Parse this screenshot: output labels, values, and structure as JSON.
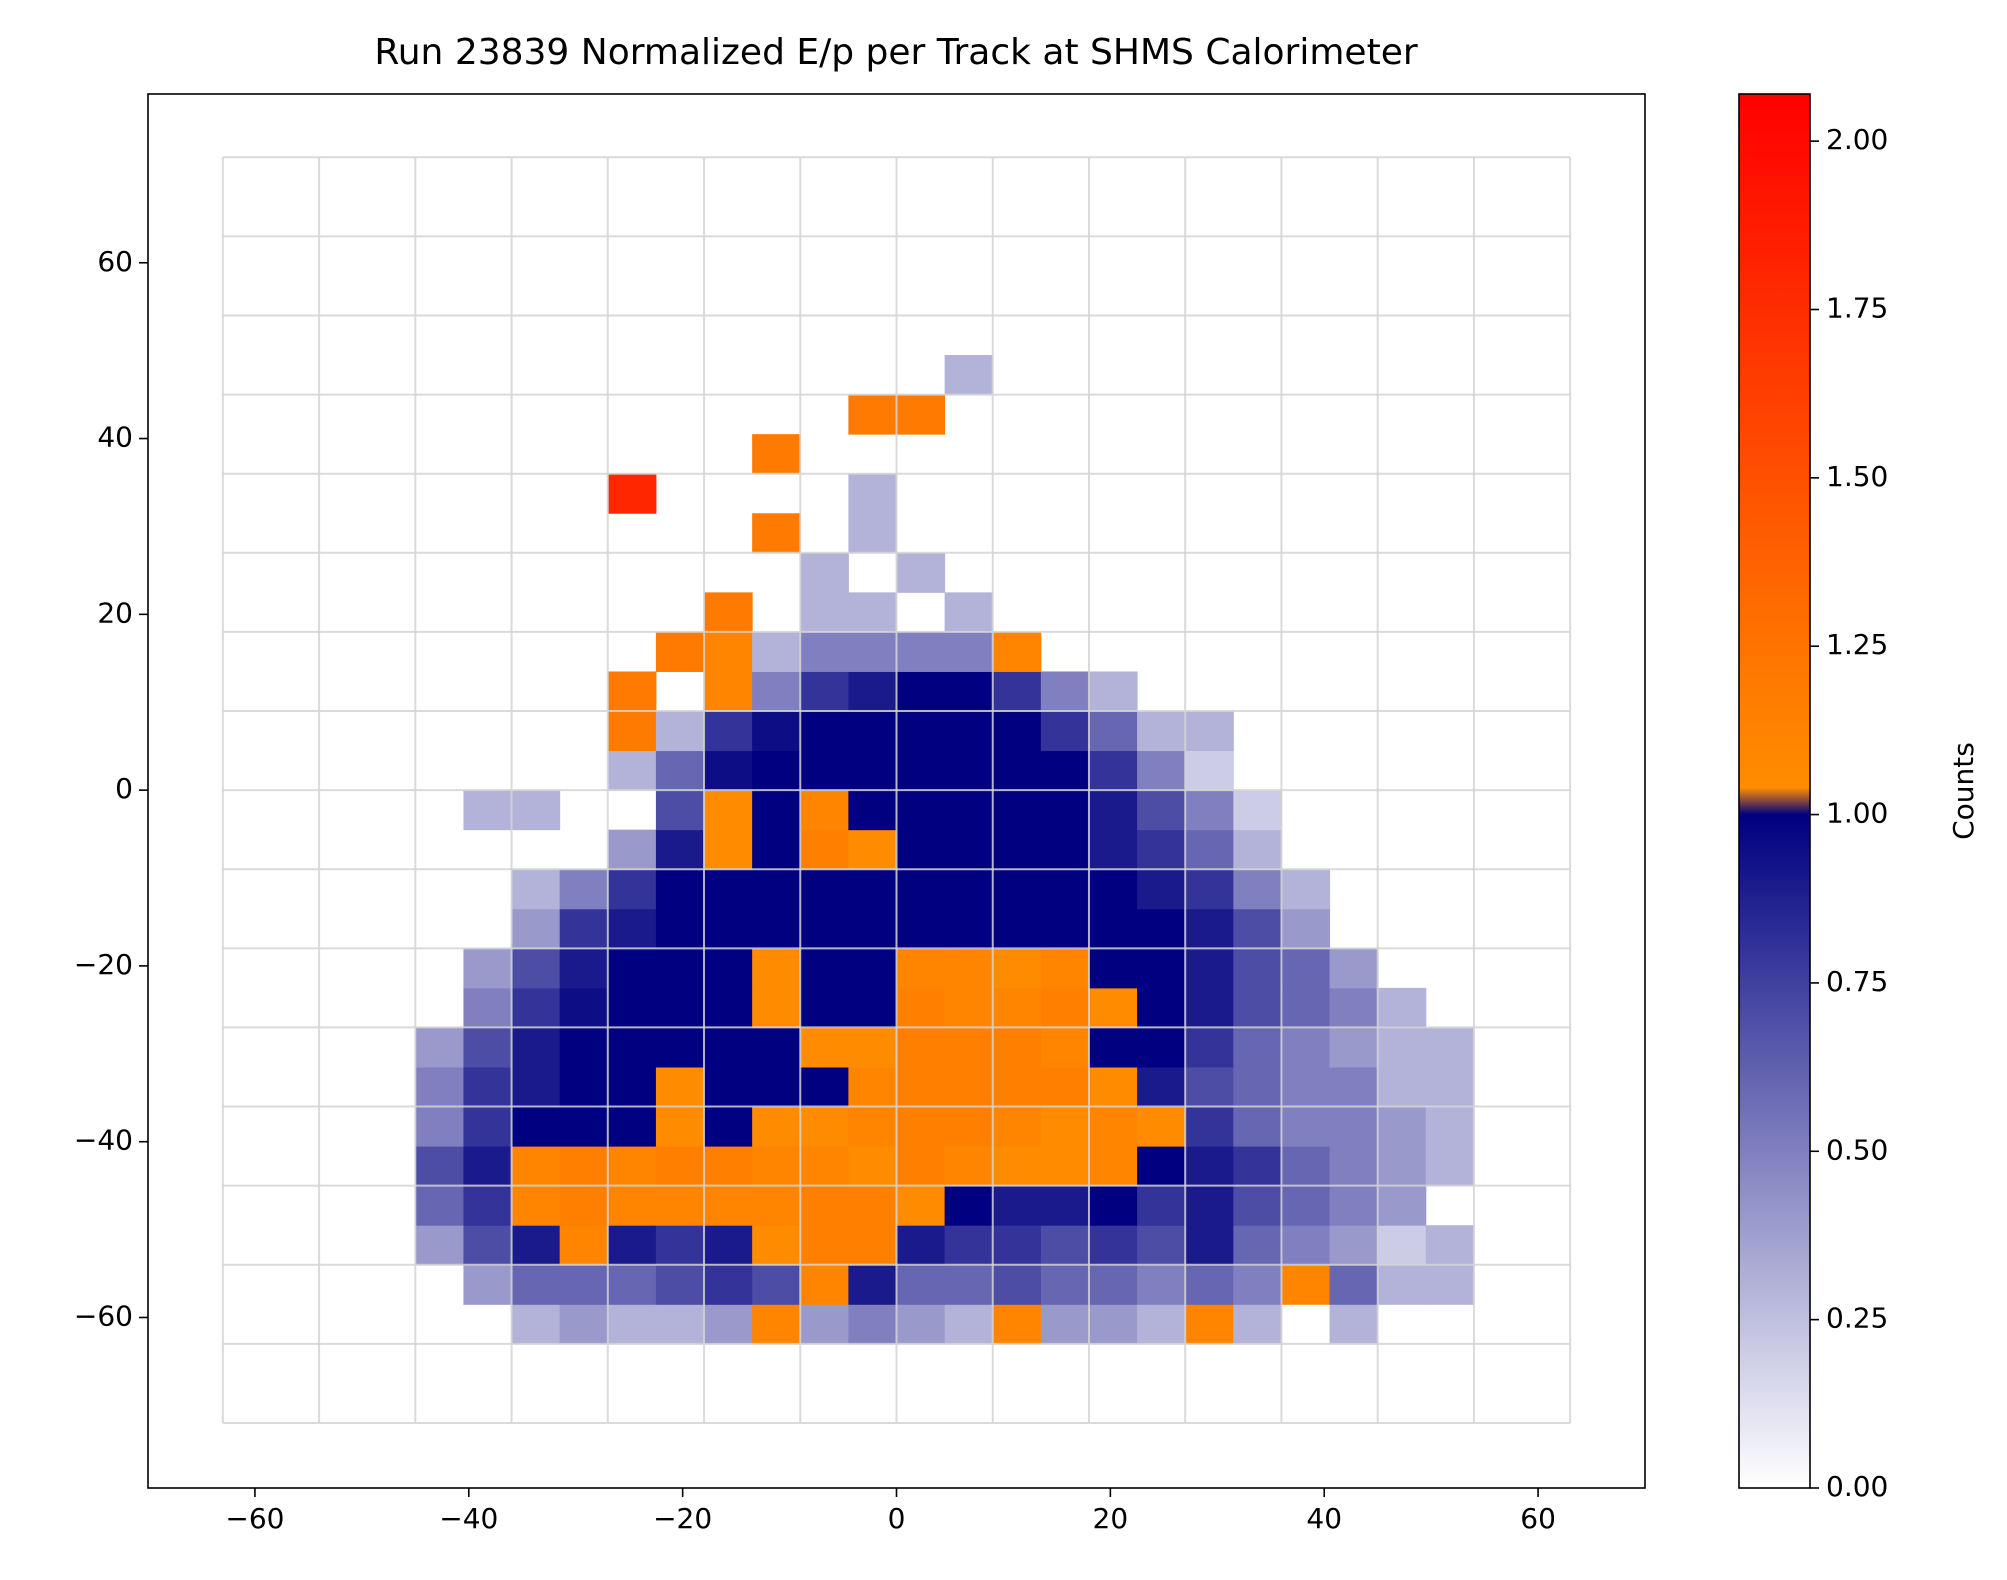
{
  "chart_data": {
    "type": "heatmap",
    "title": "Run 23839 Normalized E/p per Track at SHMS Calorimeter",
    "colorbar_label": "Counts",
    "xlim": [
      -70,
      70
    ],
    "ylim": [
      -79.4,
      79.2
    ],
    "xticks": [
      {
        "value": -60,
        "label": "−60"
      },
      {
        "value": -40,
        "label": "−40"
      },
      {
        "value": -20,
        "label": "−20"
      },
      0,
      20,
      40,
      60
    ],
    "yticks": [
      {
        "value": -60,
        "label": "−60"
      },
      {
        "value": -40,
        "label": "−40"
      },
      {
        "value": -20,
        "label": "−20"
      },
      0,
      20,
      40,
      60
    ],
    "grid_x": [
      -63,
      -54,
      -45,
      -36,
      -27,
      -18,
      -9,
      0,
      9,
      18,
      27,
      36,
      45,
      54,
      63
    ],
    "grid_y": [
      -72,
      -63,
      -54,
      -45,
      -36,
      -27,
      -18,
      -9,
      0,
      9,
      18,
      27,
      36,
      45,
      54,
      63,
      72
    ],
    "grid_color": "#d3d3d3",
    "x_edges": [
      -45,
      -40.5,
      -36,
      -31.5,
      -27,
      -22.5,
      -18,
      -13.5,
      -9,
      -4.5,
      0,
      4.5,
      9,
      13.5,
      18,
      22.5,
      27,
      31.5,
      36,
      40.5,
      45,
      49.5,
      54
    ],
    "y_edges": [
      -63,
      -58.5,
      -54,
      -49.5,
      -45,
      -40.5,
      -36,
      -31.5,
      -27,
      -22.5,
      -18,
      -13.5,
      -9,
      -4.5,
      0,
      4.5,
      9,
      13.5,
      18,
      22.5,
      27,
      31.5,
      36,
      40.5,
      45,
      49.5
    ],
    "z": [
      [
        null,
        null,
        0.3,
        0.4,
        0.3,
        0.3,
        0.4,
        1.1,
        0.4,
        0.5,
        0.4,
        0.3,
        1.1,
        0.4,
        0.4,
        0.3,
        1.1,
        0.3,
        null,
        0.3,
        null,
        null
      ],
      [
        null,
        0.4,
        0.6,
        0.6,
        0.6,
        0.7,
        0.8,
        0.7,
        1.1,
        0.9,
        0.6,
        0.6,
        0.7,
        0.6,
        0.6,
        0.5,
        0.6,
        0.5,
        1.1,
        0.6,
        0.3,
        0.3
      ],
      [
        0.4,
        0.7,
        0.9,
        1.1,
        0.9,
        0.8,
        0.9,
        1.05,
        1.15,
        1.15,
        0.9,
        0.8,
        0.8,
        0.7,
        0.8,
        0.7,
        0.9,
        0.6,
        0.5,
        0.4,
        0.2,
        0.3
      ],
      [
        0.6,
        0.8,
        1.1,
        1.15,
        1.1,
        1.1,
        1.1,
        1.1,
        1.15,
        1.15,
        1.05,
        1,
        0.9,
        0.9,
        1,
        0.8,
        0.9,
        0.7,
        0.6,
        0.5,
        0.4,
        null
      ],
      [
        0.7,
        0.9,
        1.1,
        1.15,
        1.1,
        1.15,
        1.15,
        1.1,
        1.1,
        1.05,
        1.15,
        1.1,
        1.05,
        1.05,
        1.1,
        1,
        0.9,
        0.8,
        0.6,
        0.5,
        0.4,
        0.3
      ],
      [
        0.5,
        0.8,
        1,
        1,
        1,
        1.05,
        1,
        1.05,
        1.05,
        1.1,
        1.15,
        1.15,
        1.1,
        1.05,
        1.1,
        1.05,
        0.8,
        0.6,
        0.5,
        0.5,
        0.4,
        0.3
      ],
      [
        0.5,
        0.8,
        0.9,
        1,
        1,
        1.05,
        1,
        1,
        1,
        1.1,
        1.15,
        1.15,
        1.15,
        1.15,
        1.05,
        0.9,
        0.7,
        0.6,
        0.5,
        0.5,
        0.3,
        0.3
      ],
      [
        0.4,
        0.7,
        0.9,
        1,
        1,
        1,
        1,
        1,
        1.05,
        1.05,
        1.15,
        1.15,
        1.15,
        1.1,
        1,
        1,
        0.8,
        0.6,
        0.5,
        0.4,
        0.3,
        0.3
      ],
      [
        null,
        0.5,
        0.8,
        0.95,
        1,
        1,
        1,
        1.05,
        1,
        1,
        1.15,
        1.1,
        1.1,
        1.15,
        1.05,
        1,
        0.9,
        0.7,
        0.6,
        0.5,
        0.3,
        null
      ],
      [
        null,
        0.4,
        0.7,
        0.9,
        1,
        1,
        1,
        1.05,
        1,
        1,
        1.1,
        1.1,
        1.05,
        1.1,
        1,
        1,
        0.9,
        0.7,
        0.6,
        0.4,
        null,
        null
      ],
      [
        null,
        null,
        0.4,
        0.8,
        0.9,
        1,
        1,
        1,
        1,
        1,
        1,
        1,
        1,
        1,
        1,
        1,
        0.9,
        0.7,
        0.4,
        null,
        null,
        null
      ],
      [
        null,
        null,
        0.3,
        0.5,
        0.8,
        1,
        1,
        1,
        1,
        1,
        1,
        1,
        1,
        1,
        1,
        0.9,
        0.8,
        0.5,
        0.3,
        null,
        null,
        null
      ],
      [
        null,
        null,
        null,
        null,
        0.4,
        0.9,
        1.05,
        1,
        1.15,
        1.05,
        1,
        1,
        1,
        1,
        0.9,
        0.8,
        0.6,
        0.3,
        null,
        null,
        null,
        null
      ],
      [
        null,
        0.3,
        0.3,
        null,
        null,
        0.7,
        1.05,
        1,
        1.1,
        1,
        1,
        1,
        1,
        1,
        0.9,
        0.7,
        0.5,
        0.2,
        null,
        null,
        null,
        null
      ],
      [
        null,
        null,
        null,
        null,
        0.3,
        0.6,
        0.95,
        1,
        1,
        1,
        1,
        1,
        1,
        1,
        0.8,
        0.5,
        0.2,
        null,
        null,
        null,
        null,
        null
      ],
      [
        null,
        null,
        null,
        null,
        1.2,
        0.3,
        0.8,
        0.95,
        1,
        1,
        1,
        1,
        1,
        0.8,
        0.6,
        0.3,
        0.3,
        null,
        null,
        null,
        null,
        null
      ],
      [
        null,
        null,
        null,
        null,
        1.2,
        null,
        1.1,
        0.5,
        0.8,
        0.9,
        1,
        1,
        0.8,
        0.5,
        0.3,
        null,
        null,
        null,
        null,
        null,
        null,
        null
      ],
      [
        null,
        null,
        null,
        null,
        null,
        1.2,
        1.1,
        0.3,
        0.5,
        0.5,
        0.5,
        0.5,
        1.1,
        null,
        null,
        null,
        null,
        null,
        null,
        null,
        null,
        null
      ],
      [
        null,
        null,
        null,
        null,
        null,
        null,
        1.2,
        null,
        0.3,
        0.3,
        null,
        0.3,
        null,
        null,
        null,
        null,
        null,
        null,
        null,
        null,
        null,
        null
      ],
      [
        null,
        null,
        null,
        null,
        null,
        null,
        null,
        null,
        0.3,
        null,
        0.3,
        null,
        null,
        null,
        null,
        null,
        null,
        null,
        null,
        null,
        null,
        null
      ],
      [
        null,
        null,
        null,
        null,
        null,
        null,
        null,
        1.2,
        null,
        0.3,
        null,
        null,
        null,
        null,
        null,
        null,
        null,
        null,
        null,
        null,
        null,
        null
      ],
      [
        null,
        null,
        null,
        null,
        1.8,
        null,
        null,
        null,
        null,
        0.3,
        null,
        null,
        null,
        null,
        null,
        null,
        null,
        null,
        null,
        null,
        null,
        null
      ],
      [
        null,
        null,
        null,
        null,
        null,
        null,
        null,
        1.2,
        null,
        null,
        null,
        null,
        null,
        null,
        null,
        null,
        null,
        null,
        null,
        null,
        null,
        null
      ],
      [
        null,
        null,
        null,
        null,
        null,
        null,
        null,
        null,
        null,
        1.2,
        1.2,
        null,
        null,
        null,
        null,
        null,
        null,
        null,
        null,
        null,
        null,
        null
      ],
      [
        null,
        null,
        null,
        null,
        null,
        null,
        null,
        null,
        null,
        null,
        null,
        0.3,
        null,
        null,
        null,
        null,
        null,
        null,
        null,
        null,
        null,
        null
      ]
    ],
    "clim": [
      0,
      2.07
    ],
    "colormap": [
      [
        0,
        "#ffffff"
      ],
      [
        1,
        "#000080"
      ],
      [
        1.04,
        "#ff8c00"
      ],
      [
        1.2,
        "#ff7a00"
      ],
      [
        2.07,
        "#ff0000"
      ]
    ],
    "cticks": [
      {
        "value": 0,
        "label": "0.00"
      },
      {
        "value": 0.25,
        "label": "0.25"
      },
      {
        "value": 0.5,
        "label": "0.50"
      },
      {
        "value": 0.75,
        "label": "0.75"
      },
      {
        "value": 1,
        "label": "1.00"
      },
      {
        "value": 1.25,
        "label": "1.25"
      },
      {
        "value": 1.5,
        "label": "1.50"
      },
      {
        "value": 1.75,
        "label": "1.75"
      },
      {
        "value": 2,
        "label": "2.00"
      }
    ]
  }
}
